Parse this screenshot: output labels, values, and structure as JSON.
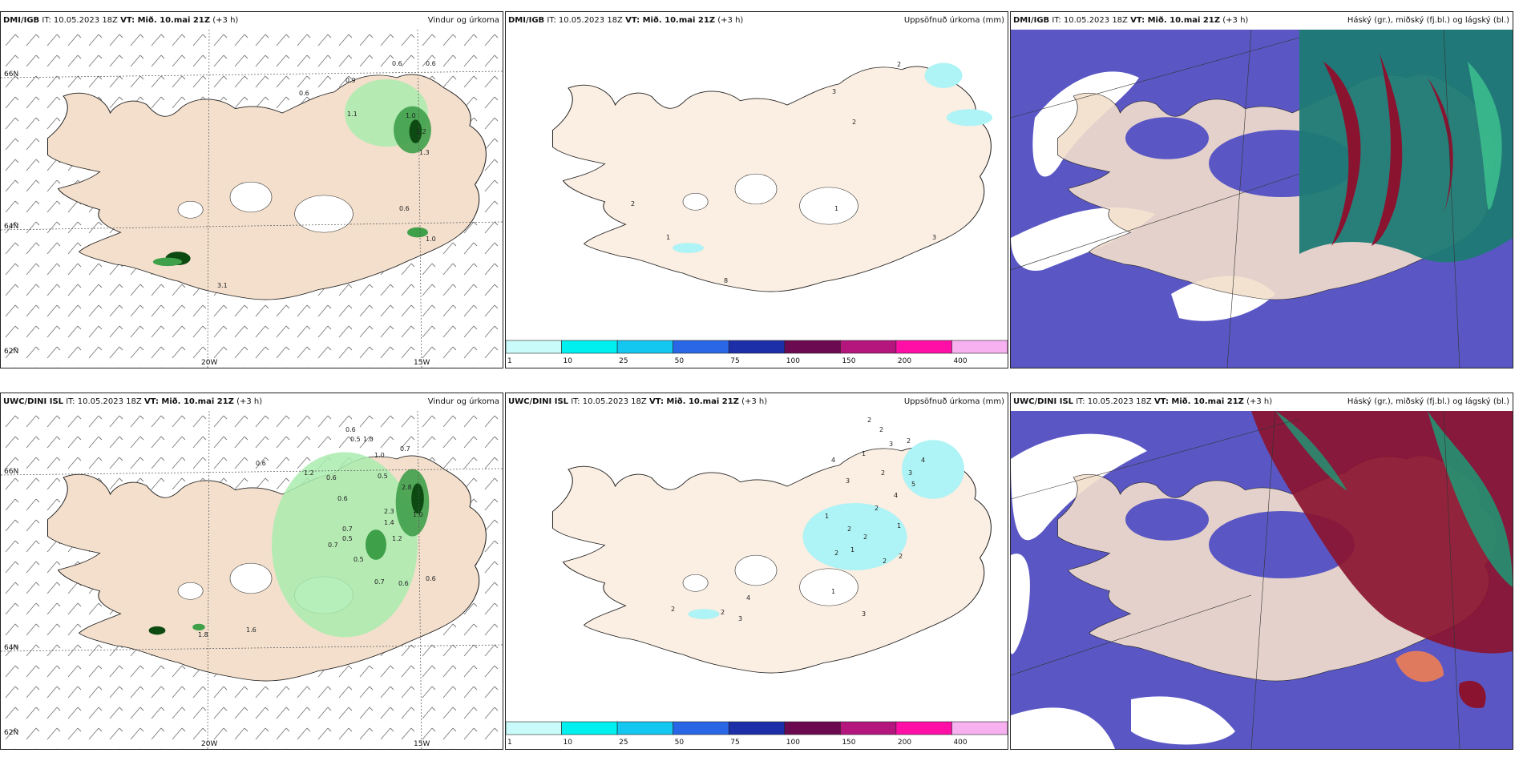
{
  "colors": {
    "land": "#f3dfcc",
    "precip_green_light": "#a9ecae",
    "precip_green_mid": "#3fa04a",
    "precip_green_dark": "#0c4a12",
    "cloud_blue": "#5a57c4",
    "cloud_white": "#ffffff",
    "cloud_teal": "#1d7a74",
    "cloud_red": "#8a1330",
    "cyan_precip": "#aef3f5"
  },
  "colorbar": {
    "labels": [
      "1",
      "10",
      "25",
      "50",
      "75",
      "100",
      "150",
      "200",
      "400"
    ],
    "colors": [
      "#c9fbfb",
      "#00f0f0",
      "#14c7f0",
      "#2a67e6",
      "#1c2fa8",
      "#6b0a50",
      "#b4167e",
      "#ff0fa6",
      "#f7b0f0"
    ]
  },
  "grid_labels": {
    "lat": [
      "66N",
      "64N",
      "62N"
    ],
    "lon": [
      "20W",
      "15W"
    ],
    "mid_lat": [
      "66N",
      "64N"
    ]
  },
  "rows": [
    {
      "model": "DMI/IGB",
      "panels": [
        {
          "it_label": "IT: 10.05.2023 18Z",
          "vt_label": "VT: Mið. 10.mai 21Z",
          "lead": "(+3 h)",
          "title": "Vindur og úrkoma",
          "values": [
            "0.6",
            "0.6",
            "0.9",
            "0.6",
            "1.0",
            "1.1",
            "1.2",
            "1.3",
            "0.6",
            "1.0",
            "3.1"
          ]
        },
        {
          "it_label": "IT: 10.05.2023 18Z",
          "vt_label": "VT: Mið. 10.mai 21Z",
          "lead": "(+3 h)",
          "title": "Uppsöfnuð úrkoma (mm)",
          "values": [
            "2",
            "3",
            "2",
            "2",
            "1",
            "1",
            "3",
            "8"
          ]
        },
        {
          "it_label": "IT: 10.05.2023 18Z",
          "vt_label": "VT: Mið. 10.mai 21Z",
          "lead": "(+3 h)",
          "title": "Háský (gr.), miðský (fj.bl.) og lágský (bl.)"
        }
      ]
    },
    {
      "model": "UWC/DINI ISL",
      "panels": [
        {
          "it_label": "IT: 10.05.2023 18Z",
          "vt_label": "VT: Mið. 10.mai 21Z",
          "lead": "(+3 h)",
          "title": "Vindur og úrkoma",
          "values": [
            "0.6",
            "0.5",
            "1.0",
            "1.0",
            "0.7",
            "0.6",
            "1.2",
            "0.6",
            "0.5",
            "2.8",
            "0.6",
            "1.0",
            "0.7",
            "0.5",
            "2.3",
            "1.4",
            "1.2",
            "0.7",
            "0.5",
            "0.6",
            "0.7",
            "0.6",
            "1.8",
            "1.6"
          ]
        },
        {
          "it_label": "IT: 10.05.2023 18Z",
          "vt_label": "VT: Mið. 10.mai 21Z",
          "lead": "(+3 h)",
          "title": "Uppsöfnuð úrkoma (mm)",
          "values": [
            "2",
            "2",
            "3",
            "2",
            "4",
            "4",
            "1",
            "2",
            "3",
            "5",
            "4",
            "2",
            "3",
            "1",
            "2",
            "1",
            "2",
            "2",
            "1",
            "2",
            "2",
            "1",
            "2",
            "3",
            "4",
            "3",
            "2"
          ]
        },
        {
          "it_label": "IT: 10.05.2023 18Z",
          "vt_label": "VT: Mið. 10.mai 21Z",
          "lead": "(+3 h)",
          "title": "Háský (gr.), miðský (fj.bl.) og lágský (bl.)"
        }
      ]
    }
  ]
}
